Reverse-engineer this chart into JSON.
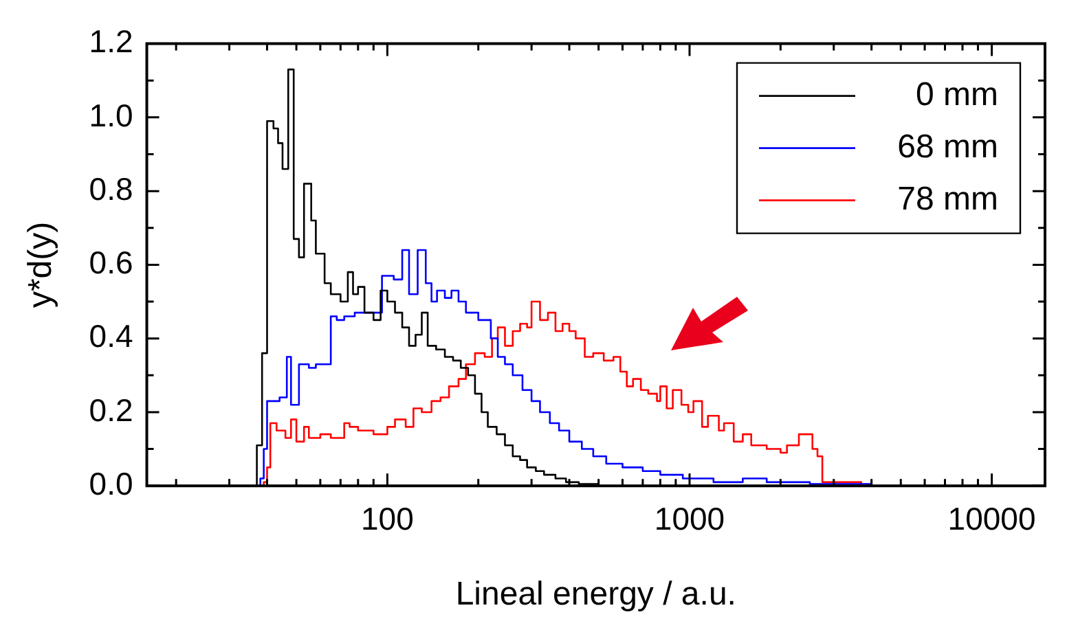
{
  "chart_data": {
    "type": "step",
    "xlabel": "Lineal energy / a.u.",
    "ylabel": "y*d(y)",
    "log": "x",
    "grid": false,
    "legend": "top right",
    "marker": "none",
    "line_style": "solid",
    "xlim": [
      16,
      15000
    ],
    "xticks": [
      {
        "value": 20,
        "label": null
      },
      {
        "value": 30,
        "label": null
      },
      {
        "value": 40,
        "label": null
      },
      {
        "value": 50,
        "label": null
      },
      {
        "value": 60,
        "label": null
      },
      {
        "value": 70,
        "label": null
      },
      {
        "value": 80,
        "label": null
      },
      {
        "value": 90,
        "label": null
      },
      100,
      {
        "value": 200,
        "label": null
      },
      {
        "value": 300,
        "label": null
      },
      {
        "value": 400,
        "label": null
      },
      {
        "value": 500,
        "label": null
      },
      {
        "value": 600,
        "label": null
      },
      {
        "value": 700,
        "label": null
      },
      {
        "value": 800,
        "label": null
      },
      {
        "value": 900,
        "label": null
      },
      1000,
      {
        "value": 2000,
        "label": null
      },
      {
        "value": 3000,
        "label": null
      },
      {
        "value": 4000,
        "label": null
      },
      {
        "value": 5000,
        "label": null
      },
      {
        "value": 6000,
        "label": null
      },
      {
        "value": 7000,
        "label": null
      },
      {
        "value": 8000,
        "label": null
      },
      {
        "value": 9000,
        "label": null
      },
      10000
    ],
    "ylim": [
      0,
      1.2
    ],
    "yticks": [
      {
        "value": 0,
        "label": "0.0"
      },
      {
        "value": 0.1,
        "label": null
      },
      {
        "value": 0.2,
        "label": "0.2"
      },
      {
        "value": 0.3,
        "label": null
      },
      {
        "value": 0.4,
        "label": "0.4"
      },
      {
        "value": 0.5,
        "label": null
      },
      {
        "value": 0.6,
        "label": "0.6"
      },
      {
        "value": 0.7,
        "label": null
      },
      {
        "value": 0.8,
        "label": "0.8"
      },
      {
        "value": 0.9,
        "label": null
      },
      {
        "value": 1,
        "label": "1.0"
      },
      {
        "value": 1.1,
        "label": null
      },
      {
        "value": 1.2,
        "label": "1.2"
      }
    ],
    "series": [
      {
        "name": "0 mm",
        "color": "#000000",
        "x": [
          16,
          37,
          38.5,
          40,
          42,
          43.5,
          45,
          47,
          49,
          51,
          53,
          56,
          58,
          62,
          65,
          70,
          74,
          77,
          80,
          84,
          90,
          95,
          100,
          106,
          112,
          118,
          124,
          130,
          136,
          145,
          155,
          165,
          175,
          185,
          195,
          205,
          215,
          230,
          245,
          260,
          275,
          290,
          310,
          330,
          360,
          390,
          430,
          500,
          15000
        ],
        "values": [
          0,
          0.11,
          0.36,
          0.99,
          0.97,
          0.93,
          0.86,
          1.13,
          0.67,
          0.62,
          0.82,
          0.72,
          0.63,
          0.55,
          0.52,
          0.5,
          0.58,
          0.52,
          0.54,
          0.47,
          0.45,
          0.53,
          0.5,
          0.47,
          0.43,
          0.38,
          0.41,
          0.47,
          0.38,
          0.37,
          0.35,
          0.34,
          0.32,
          0.3,
          0.25,
          0.2,
          0.16,
          0.14,
          0.11,
          0.08,
          0.07,
          0.05,
          0.04,
          0.03,
          0.02,
          0.01,
          0.005,
          0,
          0
        ]
      },
      {
        "name": "68 mm",
        "color": "#0000ff",
        "x": [
          16,
          38,
          39,
          40,
          44,
          46.5,
          48,
          51,
          55,
          58,
          65,
          68,
          72,
          78,
          96,
          105,
          112,
          118,
          126,
          134,
          140,
          146,
          155,
          163,
          172,
          182,
          200,
          220,
          232,
          245,
          260,
          280,
          300,
          320,
          345,
          370,
          400,
          440,
          480,
          530,
          600,
          700,
          800,
          950,
          1200,
          1500,
          1800,
          2500,
          4000,
          15000
        ],
        "values": [
          0,
          0.02,
          0.1,
          0.23,
          0.24,
          0.35,
          0.22,
          0.33,
          0.32,
          0.33,
          0.46,
          0.45,
          0.46,
          0.47,
          0.57,
          0.56,
          0.64,
          0.52,
          0.64,
          0.55,
          0.5,
          0.53,
          0.51,
          0.53,
          0.5,
          0.47,
          0.45,
          0.4,
          0.35,
          0.33,
          0.3,
          0.26,
          0.23,
          0.2,
          0.17,
          0.15,
          0.12,
          0.1,
          0.08,
          0.06,
          0.05,
          0.04,
          0.03,
          0.02,
          0.01,
          0.02,
          0.01,
          0.005,
          0,
          0
        ]
      },
      {
        "name": "78 mm",
        "color": "#ff0000",
        "x": [
          16,
          39,
          40,
          41,
          43,
          46,
          48,
          50,
          53,
          55,
          60,
          65,
          72,
          75,
          80,
          90,
          100,
          106,
          115,
          122,
          130,
          140,
          150,
          160,
          172,
          182,
          195,
          210,
          222,
          232,
          245,
          260,
          275,
          290,
          300,
          320,
          340,
          360,
          380,
          400,
          420,
          450,
          480,
          520,
          560,
          590,
          620,
          650,
          690,
          730,
          780,
          800,
          840,
          880,
          940,
          990,
          1030,
          1100,
          1150,
          1250,
          1300,
          1400,
          1500,
          1600,
          1800,
          2000,
          2100,
          2300,
          2550,
          2650,
          2750,
          3500,
          3700,
          15000
        ],
        "values": [
          0,
          0.01,
          0.05,
          0.17,
          0.15,
          0.13,
          0.18,
          0.12,
          0.16,
          0.13,
          0.14,
          0.13,
          0.17,
          0.16,
          0.15,
          0.14,
          0.16,
          0.18,
          0.16,
          0.21,
          0.2,
          0.23,
          0.24,
          0.27,
          0.29,
          0.33,
          0.36,
          0.35,
          0.4,
          0.43,
          0.38,
          0.42,
          0.44,
          0.43,
          0.5,
          0.45,
          0.47,
          0.42,
          0.44,
          0.42,
          0.4,
          0.35,
          0.36,
          0.34,
          0.35,
          0.31,
          0.27,
          0.29,
          0.26,
          0.25,
          0.23,
          0.27,
          0.21,
          0.26,
          0.22,
          0.2,
          0.23,
          0.16,
          0.19,
          0.15,
          0.17,
          0.12,
          0.14,
          0.11,
          0.1,
          0.09,
          0.11,
          0.14,
          0.1,
          0.08,
          0.01,
          0.01,
          0,
          0
        ]
      }
    ]
  }
}
